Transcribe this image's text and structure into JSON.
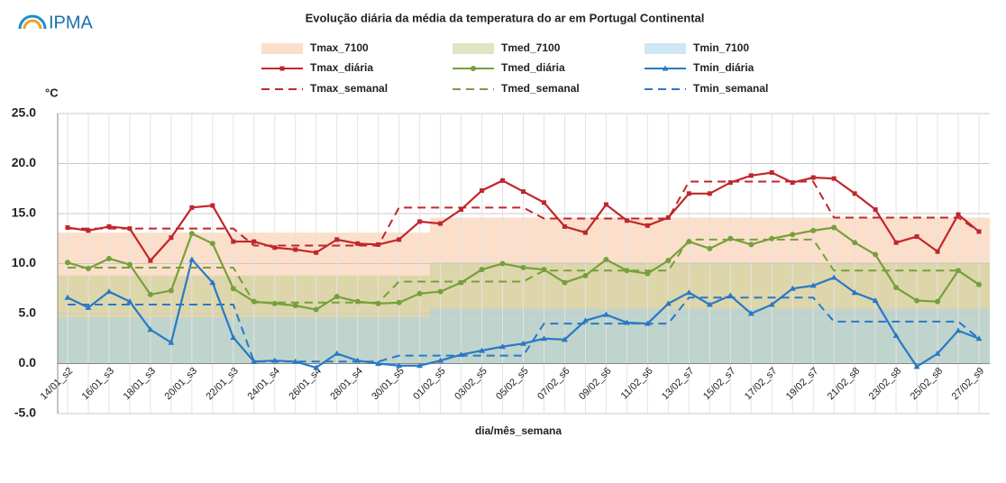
{
  "logo": {
    "text": "IPMA"
  },
  "chart_data": {
    "type": "line",
    "title": "Evolução diária da média da temperatura do ar em Portugal Continental",
    "y_label": "°C",
    "x_label": "dia/mês_semana",
    "ylim": [
      -5,
      25
    ],
    "yticks": [
      {
        "value": -5,
        "label": "-5.0"
      },
      {
        "value": 0,
        "label": "0.0"
      },
      {
        "value": 5,
        "label": "5.0"
      },
      {
        "value": 10,
        "label": "10.0"
      },
      {
        "value": 15,
        "label": "15.0"
      },
      {
        "value": 20,
        "label": "20.0"
      },
      {
        "value": 25,
        "label": "25.0"
      }
    ],
    "grid": true,
    "categories": [
      "14/01_s2",
      null,
      "16/01_s3",
      null,
      "18/01_s3",
      null,
      "20/01_s3",
      null,
      "22/01_s3",
      null,
      "24/01_s4",
      null,
      "26/01_s4",
      null,
      "28/01_s4",
      null,
      "30/01_s5",
      null,
      "01/02_s5",
      null,
      "03/02_s5",
      null,
      "05/02_s5",
      null,
      "07/02_s6",
      null,
      "09/02_s6",
      null,
      "11/02_s6",
      null,
      "13/02_s7",
      null,
      "15/02_s7",
      null,
      "17/02_s7",
      null,
      "19/02_s7",
      null,
      "21/02_s8",
      null,
      "23/02_s8",
      null,
      "25/02_s8",
      null,
      "27/02_s9"
    ],
    "series": [
      {
        "name": "Tmax_7100",
        "style": "band",
        "color": "#f7c5a0",
        "values": [
          13.1,
          13.1,
          13.1,
          13.1,
          13.1,
          13.1,
          13.1,
          13.1,
          13.1,
          13.1,
          13.1,
          13.1,
          13.1,
          13.1,
          13.1,
          13.1,
          13.1,
          13.1,
          14.6,
          14.6,
          14.6,
          14.6,
          14.6,
          14.6,
          14.6,
          14.6,
          14.6,
          14.6,
          14.6,
          14.6,
          14.6,
          14.6,
          14.6,
          14.6,
          14.6,
          14.6,
          14.6,
          14.6,
          14.6,
          14.6,
          14.6,
          14.6,
          14.6,
          14.6,
          14.6
        ]
      },
      {
        "name": "Tmed_7100",
        "style": "band",
        "color": "#c4cd92",
        "values": [
          8.8,
          8.8,
          8.8,
          8.8,
          8.8,
          8.8,
          8.8,
          8.8,
          8.8,
          8.8,
          8.8,
          8.8,
          8.8,
          8.8,
          8.8,
          8.8,
          8.8,
          8.8,
          10.1,
          10.1,
          10.1,
          10.1,
          10.1,
          10.1,
          10.1,
          10.1,
          10.1,
          10.1,
          10.1,
          10.1,
          10.1,
          10.1,
          10.1,
          10.1,
          10.1,
          10.1,
          10.1,
          10.1,
          10.1,
          10.1,
          10.1,
          10.1,
          10.1,
          10.1,
          10.1
        ]
      },
      {
        "name": "Tmin_7100",
        "style": "band",
        "color": "#a6d3e8",
        "values": [
          4.6,
          4.6,
          4.6,
          4.6,
          4.6,
          4.6,
          4.6,
          4.6,
          4.6,
          4.6,
          4.6,
          4.6,
          4.6,
          4.6,
          4.6,
          4.6,
          4.6,
          4.6,
          5.5,
          5.5,
          5.5,
          5.5,
          5.5,
          5.5,
          5.5,
          5.5,
          5.5,
          5.5,
          5.5,
          5.5,
          5.5,
          5.5,
          5.5,
          5.5,
          5.5,
          5.5,
          5.5,
          5.5,
          5.5,
          5.5,
          5.5,
          5.5,
          5.5,
          5.5,
          5.5
        ]
      },
      {
        "name": "Tmax_diária",
        "style": "line",
        "marker": "square",
        "color": "#c0262c",
        "values": [
          13.6,
          13.3,
          13.7,
          13.5,
          10.3,
          12.6,
          15.6,
          15.8,
          12.2,
          12.2,
          11.6,
          11.4,
          11.1,
          12.4,
          12.0,
          11.9,
          12.4,
          14.2,
          14.0,
          15.4,
          17.3,
          18.3,
          17.2,
          16.1,
          13.7,
          13.1,
          15.9,
          14.3,
          13.8,
          14.6,
          17.0,
          17.0,
          18.1,
          18.8,
          19.1,
          18.1,
          18.6,
          18.5,
          17.0,
          15.4,
          12.1,
          12.7,
          11.2,
          14.9,
          13.2
        ]
      },
      {
        "name": "Tmed_diária",
        "style": "line",
        "marker": "circle",
        "color": "#76a03a",
        "values": [
          10.1,
          9.5,
          10.5,
          9.9,
          6.9,
          7.3,
          13.0,
          12.0,
          7.5,
          6.2,
          6.0,
          5.8,
          5.4,
          6.7,
          6.2,
          6.0,
          6.1,
          7.0,
          7.2,
          8.1,
          9.4,
          10.0,
          9.6,
          9.4,
          8.1,
          8.8,
          10.4,
          9.3,
          9.0,
          10.3,
          12.2,
          11.5,
          12.5,
          11.9,
          12.5,
          12.9,
          13.3,
          13.6,
          12.1,
          10.9,
          7.6,
          6.3,
          6.2,
          9.3,
          7.9
        ]
      },
      {
        "name": "Tmin_diária",
        "style": "line",
        "marker": "triangle",
        "color": "#2879c6",
        "values": [
          6.6,
          5.6,
          7.2,
          6.2,
          3.4,
          2.1,
          10.4,
          8.1,
          2.6,
          0.2,
          0.3,
          0.2,
          -0.4,
          1.0,
          0.3,
          0.0,
          -0.2,
          -0.2,
          0.3,
          0.9,
          1.3,
          1.7,
          2.0,
          2.5,
          2.4,
          4.3,
          4.9,
          4.1,
          4.0,
          6.0,
          7.1,
          5.9,
          6.8,
          5.0,
          5.9,
          7.5,
          7.8,
          8.6,
          7.1,
          6.3,
          2.8,
          -0.3,
          1.0,
          3.3,
          2.5
        ]
      },
      {
        "name": "Tmax_semanal",
        "style": "dashed",
        "color": "#c0262c",
        "values": [
          13.5,
          13.5,
          13.5,
          13.5,
          13.5,
          13.5,
          13.5,
          13.5,
          13.5,
          11.8,
          11.8,
          11.8,
          11.8,
          11.8,
          11.8,
          11.8,
          15.6,
          15.6,
          15.6,
          15.6,
          15.6,
          15.6,
          15.6,
          14.5,
          14.5,
          14.5,
          14.5,
          14.5,
          14.5,
          14.5,
          18.2,
          18.2,
          18.2,
          18.2,
          18.2,
          18.2,
          18.2,
          14.6,
          14.6,
          14.6,
          14.6,
          14.6,
          14.6,
          14.6,
          13.2
        ]
      },
      {
        "name": "Tmed_semanal",
        "style": "dashed",
        "color": "#76a03a",
        "values": [
          9.6,
          9.6,
          9.6,
          9.6,
          9.6,
          9.6,
          9.6,
          9.6,
          9.6,
          6.1,
          6.1,
          6.1,
          6.1,
          6.1,
          6.1,
          6.1,
          8.2,
          8.2,
          8.2,
          8.2,
          8.2,
          8.2,
          8.2,
          9.3,
          9.3,
          9.3,
          9.3,
          9.3,
          9.3,
          9.3,
          12.4,
          12.4,
          12.4,
          12.4,
          12.4,
          12.4,
          12.4,
          9.3,
          9.3,
          9.3,
          9.3,
          9.3,
          9.3,
          9.3,
          7.9
        ]
      },
      {
        "name": "Tmin_semanal",
        "style": "dashed",
        "color": "#2879c6",
        "values": [
          5.9,
          5.9,
          5.9,
          5.9,
          5.9,
          5.9,
          5.9,
          5.9,
          5.9,
          0.2,
          0.2,
          0.2,
          0.2,
          0.2,
          0.2,
          0.2,
          0.8,
          0.8,
          0.8,
          0.8,
          0.8,
          0.8,
          0.8,
          4.0,
          4.0,
          4.0,
          4.0,
          4.0,
          4.0,
          4.0,
          6.6,
          6.6,
          6.6,
          6.6,
          6.6,
          6.6,
          6.6,
          4.2,
          4.2,
          4.2,
          4.2,
          4.2,
          4.2,
          4.2,
          2.5
        ]
      }
    ]
  }
}
